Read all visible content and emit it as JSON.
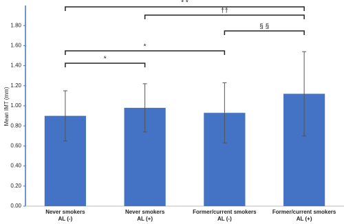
{
  "chart_data": {
    "type": "bar",
    "y_label": "Mean IMT (mm)",
    "categories": [
      [
        "Never smokers",
        "AL (-)"
      ],
      [
        "Never smokers",
        "AL (+)"
      ],
      [
        "Former/current smokers",
        "AL (-)"
      ],
      [
        "Former/current smokers",
        "AL (+)"
      ]
    ],
    "values": [
      0.9,
      0.98,
      0.93,
      1.12
    ],
    "errors": [
      0.25,
      0.24,
      0.3,
      0.42
    ],
    "color": "#4472c4",
    "ylim": [
      0,
      2.0
    ],
    "yticks": [
      {
        "value": 0,
        "label": "0.00"
      },
      {
        "value": 0.2,
        "label": "0.20"
      },
      {
        "value": 0.4,
        "label": "0.40"
      },
      {
        "value": 0.6,
        "label": "0.60"
      },
      {
        "value": 0.8,
        "label": "0.80"
      },
      {
        "value": 1.0,
        "label": "1.00"
      },
      {
        "value": 1.2,
        "label": "1.20"
      },
      {
        "value": 1.4,
        "label": "1.40"
      },
      {
        "value": 1.6,
        "label": "1.60"
      },
      {
        "value": 1.8,
        "label": "1.80"
      }
    ],
    "annotations": [
      {
        "label": "* *",
        "from": 0,
        "to": 3
      },
      {
        "label": "††",
        "from": 1,
        "to": 3
      },
      {
        "label": "§ §",
        "from": 2,
        "to": 3
      },
      {
        "label": "*",
        "from": 0,
        "to": 2
      },
      {
        "label": "*",
        "from": 0,
        "to": 1
      }
    ]
  }
}
